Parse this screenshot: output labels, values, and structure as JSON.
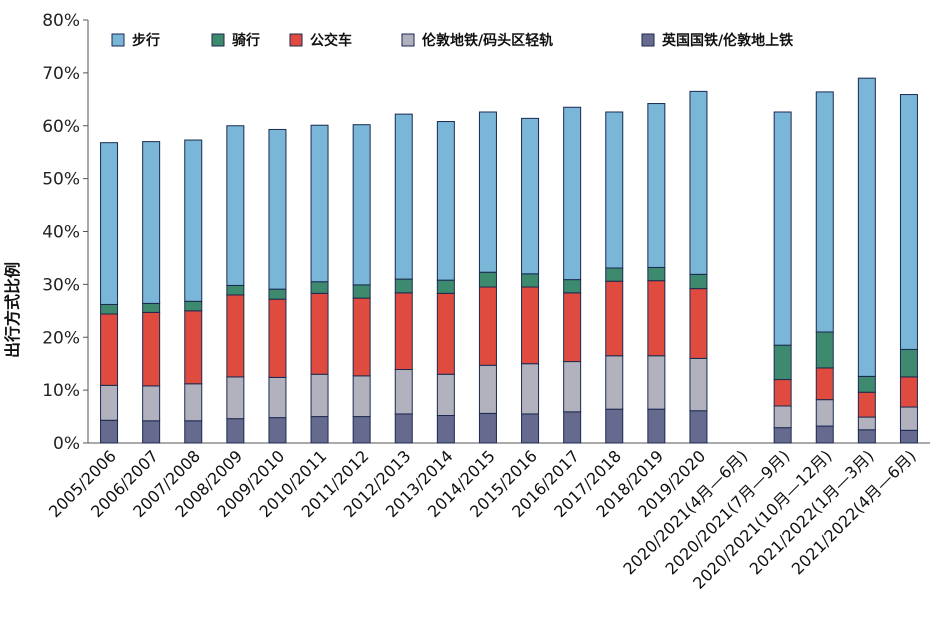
{
  "chart_data": {
    "type": "bar",
    "stacked": true,
    "title": "",
    "xlabel": "",
    "ylabel": "出行方式比例",
    "ylim": [
      0,
      80
    ],
    "y_ticks": [
      "0%",
      "10%",
      "20%",
      "30%",
      "40%",
      "50%",
      "60%",
      "70%",
      "80%"
    ],
    "legend_position": "top",
    "categories": [
      "2005/2006",
      "2006/2007",
      "2007/2008",
      "2008/2009",
      "2009/2010",
      "2010/2011",
      "2011/2012",
      "2012/2013",
      "2013/2014",
      "2014/2015",
      "2015/2016",
      "2016/2017",
      "2017/2018",
      "2018/2019",
      "2019/2020",
      "2020/2021(4月—6月)",
      "2020/2021(7月—9月)",
      "2020/2021(10月—12月)",
      "2021/2022(1月—3月)",
      "2021/2022(4月—6月)"
    ],
    "series": [
      {
        "name": "英国国铁/伦敦地上铁",
        "color": "#666a8e",
        "values": [
          4.3,
          4.2,
          4.2,
          4.6,
          4.8,
          5.0,
          5.0,
          5.5,
          5.2,
          5.6,
          5.5,
          5.9,
          6.4,
          6.4,
          6.1,
          null,
          2.9,
          3.2,
          2.5,
          2.4
        ]
      },
      {
        "name": "伦敦地铁/码头区轻轨",
        "color": "#b2b2bf",
        "values": [
          6.6,
          6.6,
          7.0,
          7.9,
          7.6,
          8.0,
          7.7,
          8.4,
          7.8,
          9.1,
          9.5,
          9.5,
          10.1,
          10.1,
          9.9,
          null,
          4.1,
          5.0,
          2.4,
          4.4
        ]
      },
      {
        "name": "公交车",
        "color": "#e04b3f",
        "values": [
          13.5,
          13.9,
          13.8,
          15.5,
          14.8,
          15.3,
          14.7,
          14.5,
          15.3,
          14.8,
          14.5,
          13.0,
          14.1,
          14.2,
          13.2,
          null,
          5.0,
          6.0,
          4.7,
          5.7
        ]
      },
      {
        "name": "骑行",
        "color": "#3e8a6e",
        "values": [
          1.8,
          1.7,
          1.8,
          1.8,
          1.9,
          2.2,
          2.5,
          2.6,
          2.5,
          2.8,
          2.5,
          2.5,
          2.5,
          2.5,
          2.7,
          null,
          6.5,
          6.8,
          3.0,
          5.2
        ]
      },
      {
        "name": "步行",
        "color": "#79b6d8",
        "values": [
          30.6,
          30.6,
          30.5,
          30.2,
          30.2,
          29.6,
          30.3,
          31.2,
          30.0,
          30.3,
          29.4,
          32.6,
          29.5,
          31.0,
          34.6,
          null,
          44.1,
          45.4,
          56.4,
          48.2
        ]
      }
    ],
    "legend": [
      "步行",
      "骑行",
      "公交车",
      "伦敦地铁/码头区轻轨",
      "英国国铁/伦敦地上铁"
    ]
  }
}
